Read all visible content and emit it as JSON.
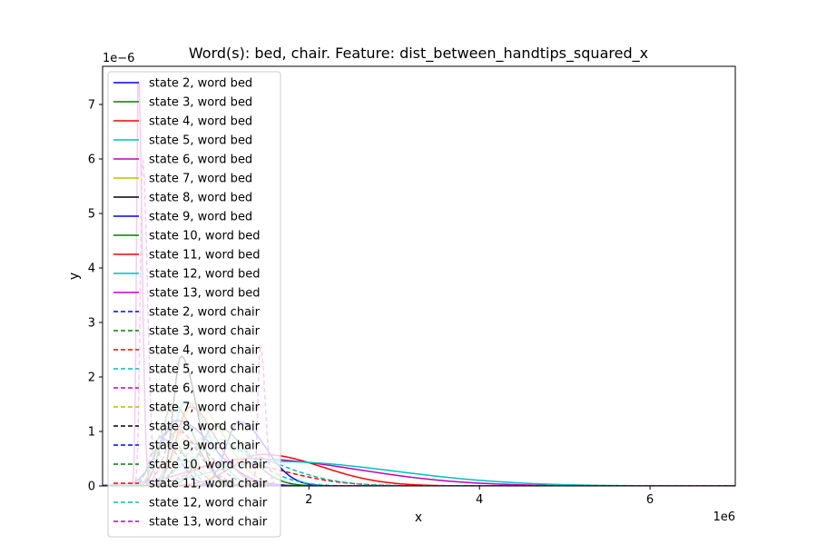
{
  "chart_data": {
    "type": "line",
    "title": "Word(s): bed, chair. Feature: dist_between_handtips_squared_x",
    "xlabel": "x",
    "ylabel": "y",
    "x_offset_label": "1e6",
    "y_offset_label": "1e−6",
    "xlim": [
      -0.42,
      7.0
    ],
    "ylim": [
      0,
      7.7
    ],
    "xticks": [
      {
        "v": 2,
        "label": "2"
      },
      {
        "v": 4,
        "label": "4"
      },
      {
        "v": 6,
        "label": "6"
      }
    ],
    "yticks": [
      {
        "v": 0,
        "label": "0"
      },
      {
        "v": 1,
        "label": "1"
      },
      {
        "v": 2,
        "label": "2"
      },
      {
        "v": 3,
        "label": "3"
      },
      {
        "v": 4,
        "label": "4"
      },
      {
        "v": 5,
        "label": "5"
      },
      {
        "v": 6,
        "label": "6"
      },
      {
        "v": 7,
        "label": "7"
      }
    ],
    "grid": false,
    "legend_position": "upper-left",
    "series": [
      {
        "name": "state 2, word bed",
        "color": "#0000ff",
        "dash": false,
        "peak_x": 1.18,
        "peak_y": 1.18,
        "width": 0.22
      },
      {
        "name": "state 3, word bed",
        "color": "#008000",
        "dash": false,
        "peak_x": 0.4,
        "peak_y": 1.5,
        "width": 0.18
      },
      {
        "name": "state 4, word bed",
        "color": "#ff0000",
        "dash": false,
        "peak_x": 1.45,
        "peak_y": 0.58,
        "width": 0.5
      },
      {
        "name": "state 5, word bed",
        "color": "#00bfbf",
        "dash": false,
        "peak_x": 0.55,
        "peak_y": 1.55,
        "width": 0.2
      },
      {
        "name": "state 6, word bed",
        "color": "#bf00bf",
        "dash": false,
        "peak_x": 1.3,
        "peak_y": 0.5,
        "width": 0.9
      },
      {
        "name": "state 7, word bed",
        "color": "#bfbf00",
        "dash": false,
        "peak_x": 0.65,
        "peak_y": 1.52,
        "width": 0.25
      },
      {
        "name": "state 8, word bed",
        "color": "#000000",
        "dash": false,
        "peak_x": 0.5,
        "peak_y": 2.38,
        "width": 0.13
      },
      {
        "name": "state 9, word bed",
        "color": "#0000ff",
        "dash": false,
        "peak_x": 0.45,
        "peak_y": 1.2,
        "width": 0.3
      },
      {
        "name": "state 10, word bed",
        "color": "#008000",
        "dash": false,
        "peak_x": 0.9,
        "peak_y": 1.1,
        "width": 0.25
      },
      {
        "name": "state 11, word bed",
        "color": "#ff0000",
        "dash": false,
        "peak_x": 0.6,
        "peak_y": 1.45,
        "width": 0.22
      },
      {
        "name": "state 12, word bed",
        "color": "#00bfbf",
        "dash": false,
        "peak_x": 1.6,
        "peak_y": 0.45,
        "width": 1.0
      },
      {
        "name": "state 13, word bed",
        "color": "#bf00bf",
        "dash": false,
        "peak_x": 0.0,
        "peak_y": 7.6,
        "width": 0.03
      },
      {
        "name": "state 2, word chair",
        "color": "#0000ff",
        "dash": true,
        "peak_x": 0.4,
        "peak_y": 1.1,
        "width": 0.2
      },
      {
        "name": "state 3, word chair",
        "color": "#008000",
        "dash": true,
        "peak_x": 0.3,
        "peak_y": 1.05,
        "width": 0.15
      },
      {
        "name": "state 4, word chair",
        "color": "#ff0000",
        "dash": true,
        "peak_x": 0.45,
        "peak_y": 1.0,
        "width": 0.2
      },
      {
        "name": "state 5, word chair",
        "color": "#00bfbf",
        "dash": true,
        "peak_x": 0.8,
        "peak_y": 0.9,
        "width": 0.35
      },
      {
        "name": "state 6, word chair",
        "color": "#bf00bf",
        "dash": true,
        "peak_x": 1.43,
        "peak_y": 2.6,
        "width": 0.04
      },
      {
        "name": "state 7, word chair",
        "color": "#bfbf00",
        "dash": true,
        "peak_x": 0.35,
        "peak_y": 1.1,
        "width": 0.18
      },
      {
        "name": "state 8, word chair",
        "color": "#000000",
        "dash": true,
        "peak_x": 0.6,
        "peak_y": 0.8,
        "width": 0.2
      },
      {
        "name": "state 9, word chair",
        "color": "#0000ff",
        "dash": true,
        "peak_x": 0.25,
        "peak_y": 0.9,
        "width": 0.15
      },
      {
        "name": "state 10, word chair",
        "color": "#008000",
        "dash": true,
        "peak_x": 0.3,
        "peak_y": 0.8,
        "width": 0.2
      },
      {
        "name": "state 11, word chair",
        "color": "#ff0000",
        "dash": true,
        "peak_x": 1.0,
        "peak_y": 0.45,
        "width": 0.5
      },
      {
        "name": "state 12, word chair",
        "color": "#00bfbf",
        "dash": true,
        "peak_x": 0.9,
        "peak_y": 0.7,
        "width": 0.5
      },
      {
        "name": "state 13, word chair",
        "color": "#bf00bf",
        "dash": true,
        "peak_x": 0.05,
        "peak_y": 6.0,
        "width": 0.04
      }
    ]
  }
}
